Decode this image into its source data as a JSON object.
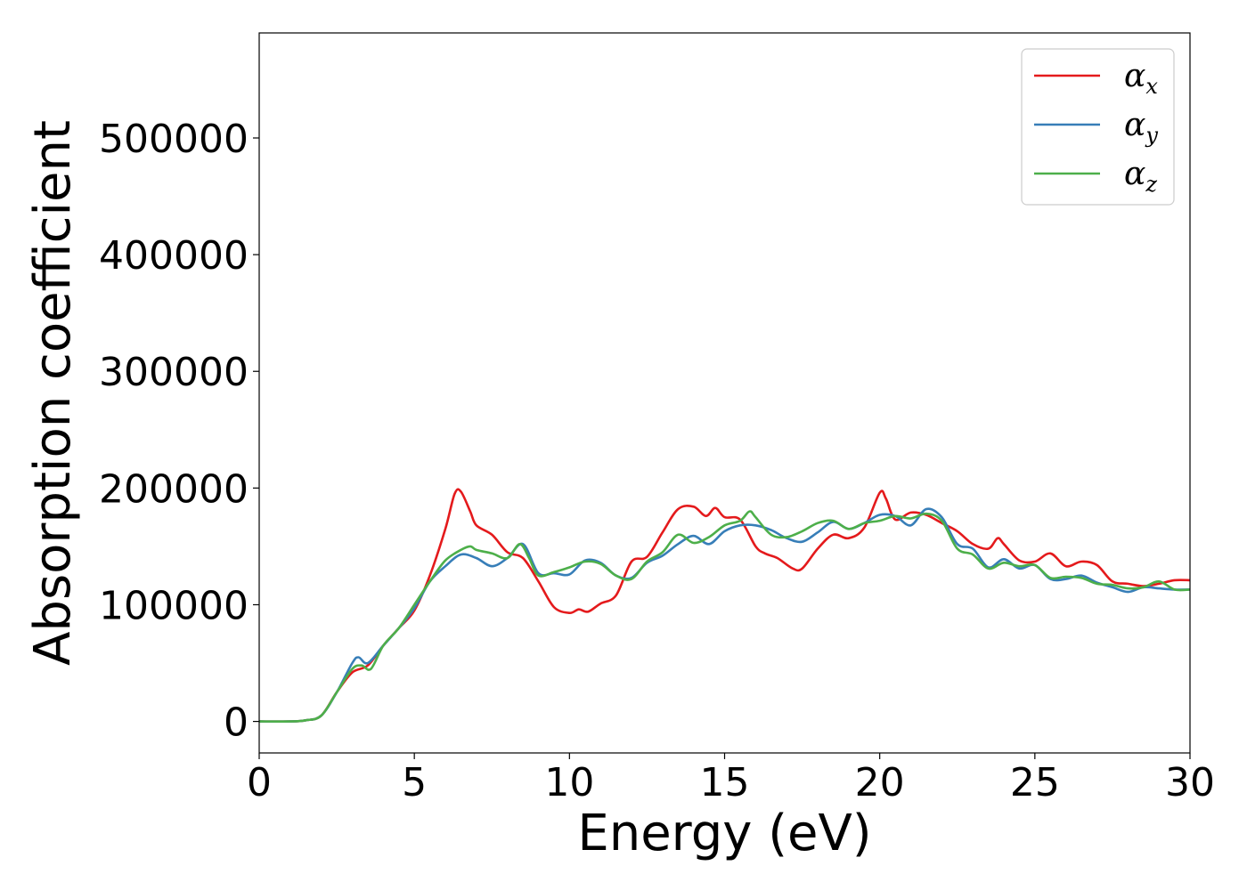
{
  "chart_data": {
    "type": "line",
    "xlabel": "Energy (eV)",
    "ylabel": "Absorption coefficient",
    "xlim": [
      0,
      30
    ],
    "ylim": [
      -27000,
      590000
    ],
    "xticks": [
      0,
      5,
      10,
      15,
      20,
      25,
      30
    ],
    "yticks": [
      0,
      100000,
      200000,
      300000,
      400000,
      500000
    ],
    "grid": false,
    "legend_position": "top-right",
    "series": [
      {
        "name": "α_x",
        "symbol": "α",
        "subscript": "x",
        "color": "#e41a1c",
        "x": [
          0,
          1,
          1.5,
          2,
          2.5,
          3,
          3.5,
          4,
          4.5,
          5,
          5.5,
          6,
          6.3,
          6.5,
          6.8,
          7,
          7.5,
          8,
          8.5,
          9,
          9.5,
          10,
          10.3,
          10.6,
          11,
          11.5,
          12,
          12.5,
          13,
          13.5,
          14,
          14.4,
          14.7,
          15,
          15.5,
          16,
          16.3,
          16.7,
          17.2,
          17.5,
          18,
          18.5,
          19,
          19.5,
          20,
          20.2,
          20.5,
          21,
          21.5,
          22,
          22.5,
          23,
          23.5,
          23.8,
          24,
          24.5,
          25,
          25.5,
          26,
          26.5,
          27,
          27.5,
          28,
          28.5,
          29,
          29.5,
          30
        ],
        "y": [
          0,
          0,
          1000,
          5000,
          25000,
          42000,
          48000,
          65000,
          80000,
          95000,
          125000,
          165000,
          195000,
          197000,
          180000,
          168000,
          160000,
          145000,
          140000,
          120000,
          98000,
          93000,
          96000,
          94000,
          101000,
          108000,
          137000,
          141000,
          162000,
          182000,
          184000,
          176000,
          183000,
          175000,
          173000,
          150000,
          144000,
          140000,
          131000,
          131000,
          148000,
          160000,
          157000,
          166000,
          196000,
          191000,
          173000,
          179000,
          177000,
          170000,
          163000,
          152000,
          148000,
          157000,
          152000,
          138000,
          137000,
          144000,
          133000,
          137000,
          134000,
          120000,
          118000,
          116000,
          118000,
          121000,
          121000
        ]
      },
      {
        "name": "α_y",
        "symbol": "α",
        "subscript": "y",
        "color": "#377eb8",
        "x": [
          0,
          1,
          1.5,
          2,
          2.5,
          3,
          3.2,
          3.5,
          4,
          4.5,
          5,
          5.5,
          6,
          6.5,
          7,
          7.5,
          8,
          8.5,
          9,
          9.5,
          10,
          10.5,
          11,
          11.5,
          12,
          12.5,
          13,
          13.5,
          14,
          14.5,
          15,
          15.5,
          16,
          16.5,
          17,
          17.5,
          18,
          18.5,
          19,
          19.5,
          20,
          20.5,
          21,
          21.5,
          22,
          22.5,
          23,
          23.5,
          24,
          24.5,
          25,
          25.5,
          26,
          26.5,
          27,
          27.5,
          28,
          28.5,
          29,
          29.5,
          30
        ],
        "y": [
          0,
          0,
          1000,
          5000,
          25000,
          50000,
          55000,
          50000,
          65000,
          80000,
          97000,
          120000,
          133000,
          143000,
          140000,
          133000,
          140000,
          152000,
          127000,
          127000,
          126000,
          138000,
          136000,
          125000,
          123000,
          136000,
          142000,
          152000,
          159000,
          152000,
          163000,
          168000,
          168000,
          164000,
          157000,
          154000,
          162000,
          171000,
          165000,
          170000,
          177000,
          176000,
          168000,
          182000,
          175000,
          152000,
          148000,
          132000,
          139000,
          131000,
          134000,
          122000,
          122000,
          125000,
          119000,
          115000,
          111000,
          115000,
          114000,
          113000,
          113000
        ]
      },
      {
        "name": "α_z",
        "symbol": "α",
        "subscript": "z",
        "color": "#4daf4a",
        "x": [
          0,
          1,
          1.5,
          2,
          2.5,
          3,
          3.3,
          3.6,
          4,
          4.5,
          5,
          5.5,
          6,
          6.5,
          6.8,
          7,
          7.5,
          8,
          8.4,
          8.7,
          9,
          9.5,
          10,
          10.5,
          11,
          11.5,
          12,
          12.5,
          13,
          13.5,
          14,
          14.5,
          15,
          15.5,
          15.8,
          16,
          16.5,
          17,
          17.5,
          18,
          18.5,
          19,
          19.5,
          20,
          20.5,
          21,
          21.5,
          22,
          22.5,
          23,
          23.5,
          24,
          24.5,
          25,
          25.5,
          26,
          26.5,
          27,
          27.5,
          28,
          28.5,
          29,
          29.5,
          30
        ],
        "y": [
          0,
          0,
          1000,
          5000,
          25000,
          45000,
          48000,
          45000,
          65000,
          80000,
          100000,
          120000,
          138000,
          147000,
          150000,
          147000,
          144000,
          140000,
          152000,
          140000,
          125000,
          128000,
          132000,
          137000,
          135000,
          125000,
          122000,
          137000,
          145000,
          160000,
          153000,
          158000,
          168000,
          172000,
          180000,
          175000,
          160000,
          158000,
          163000,
          170000,
          172000,
          165000,
          170000,
          172000,
          176000,
          174000,
          178000,
          172000,
          148000,
          143000,
          131000,
          136000,
          133000,
          134000,
          123000,
          124000,
          123000,
          118000,
          117000,
          114000,
          115000,
          120000,
          113000,
          113000
        ]
      }
    ]
  }
}
